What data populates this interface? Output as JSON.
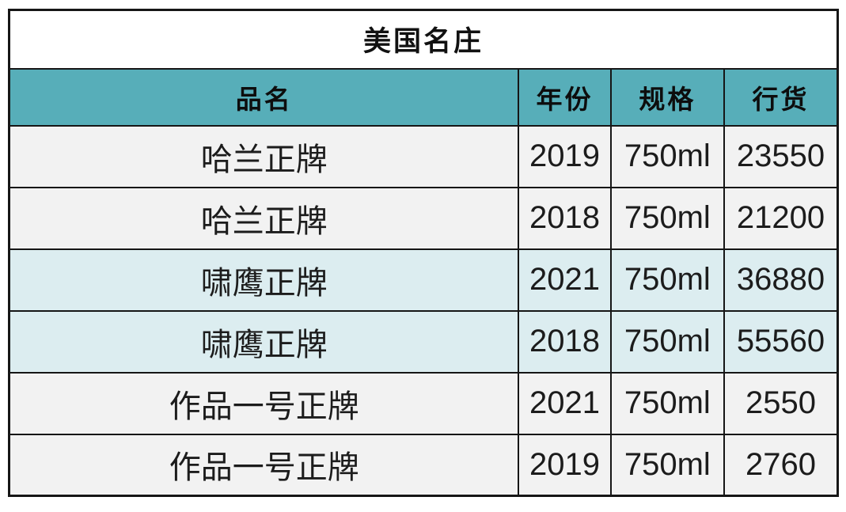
{
  "chart_data": {
    "type": "table",
    "title": "美国名庄",
    "columns": [
      "品名",
      "年份",
      "规格",
      "行货"
    ],
    "rows": [
      [
        "哈兰正牌",
        "2019",
        "750ml",
        "23550"
      ],
      [
        "哈兰正牌",
        "2018",
        "750ml",
        "21200"
      ],
      [
        "啸鹰正牌",
        "2021",
        "750ml",
        "36880"
      ],
      [
        "啸鹰正牌",
        "2018",
        "750ml",
        "55560"
      ],
      [
        "作品一号正牌",
        "2021",
        "750ml",
        "2550"
      ],
      [
        "作品一号正牌",
        "2019",
        "750ml",
        "2760"
      ]
    ],
    "layout": {
      "title_row": "merged across all 4 columns, white background",
      "header_position": "second row, teal background",
      "grid": "on, heavy black borders"
    }
  },
  "table": {
    "row_variants": [
      "gray",
      "gray",
      "blue",
      "blue",
      "gray",
      "gray"
    ]
  },
  "colors": {
    "header_bg": "#57aeb9",
    "row_gray_bg": "#f2f2f2",
    "row_blue_bg": "#dcedf0",
    "border": "#161616",
    "text": "#1c1c1c",
    "title_bg": "#ffffff"
  }
}
